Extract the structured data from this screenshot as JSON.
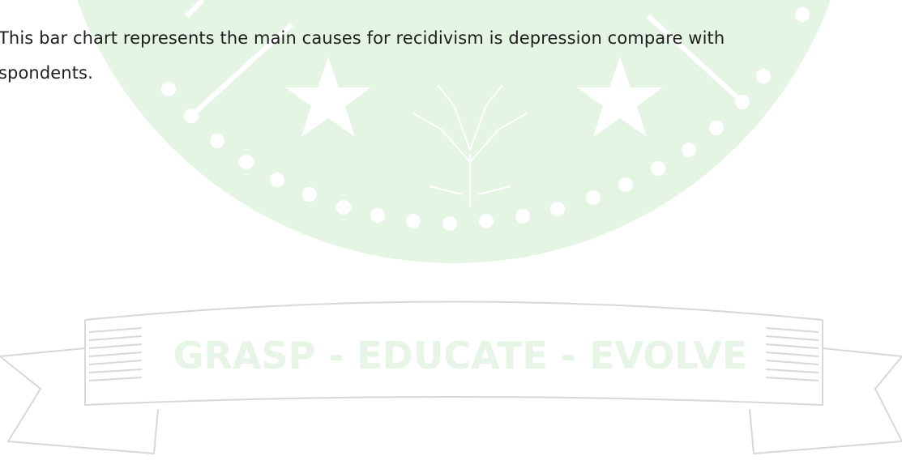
{
  "document": {
    "paragraph_lines": [
      "This bar chart represents the main causes for recidivism is depression compare with",
      "spondents."
    ],
    "watermark": "GRASP - EDUCATE - EVOLVE"
  }
}
